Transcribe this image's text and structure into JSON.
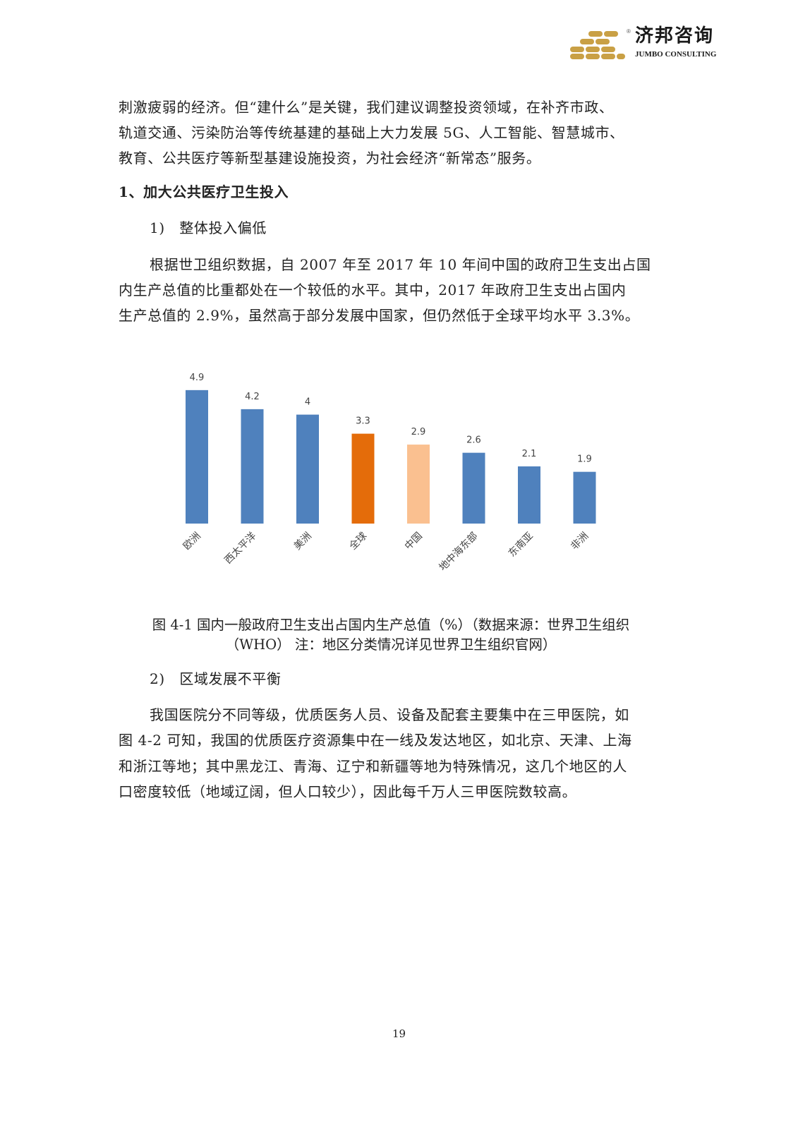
{
  "header": {
    "logo_cn": "济邦咨询",
    "logo_en": "JUMBO CONSULTING",
    "logo_mark": "®",
    "brand_color": "#c9a045"
  },
  "paragraph1": {
    "lines": [
      "刺激疲弱的经济。但“建什么”是关键，我们建议调整投资领域，在补齐市政、",
      "轨道交通、污染防治等传统基建的基础上大力发展 5G、人工智能、智慧城市、",
      "教育、公共医疗等新型基建设施投资，为社会经济“新常态”服务。"
    ]
  },
  "heading1": "1、加大公共医疗卫生投入",
  "subheading1": "1)　整体投入偏低",
  "paragraph2": {
    "lines": [
      "根据世卫组织数据，自 2007 年至 2017 年 10 年间中国的政府卫生支出占国",
      "内生产总值的比重都处在一个较低的水平。其中，2017 年政府卫生支出占国内",
      "生产总值的 2.9%，虽然高于部分发展中国家，但仍然低于全球平均水平 3.3%。"
    ]
  },
  "chart_data": {
    "type": "bar",
    "categories": [
      "欧洲",
      "西太平洋",
      "美洲",
      "全球",
      "中国",
      "地中海东部",
      "东南亚",
      "非洲"
    ],
    "values": [
      4.9,
      4.2,
      4,
      3.3,
      2.9,
      2.6,
      2.1,
      1.9
    ],
    "value_labels": [
      "4.9",
      "4.2",
      "4",
      "3.3",
      "2.9",
      "2.6",
      "2.1",
      "1.9"
    ],
    "colors": [
      "#4f81bd",
      "#4f81bd",
      "#4f81bd",
      "#e46c0a",
      "#fac090",
      "#4f81bd",
      "#4f81bd",
      "#4f81bd"
    ],
    "ylim": [
      0,
      5
    ],
    "grid": false,
    "legend": "none",
    "title": "",
    "xlabel": "",
    "ylabel": ""
  },
  "caption": {
    "lines": [
      "图 4-1  国内一般政府卫生支出占国内生产总值（%）（数据来源：世界卫生组织",
      "（WHO）  注：地区分类情况详见世界卫生组织官网）"
    ]
  },
  "subheading2": "2)　区域发展不平衡",
  "paragraph3": {
    "lines": [
      "我国医院分不同等级，优质医务人员、设备及配套主要集中在三甲医院，如",
      "图 4-2 可知，我国的优质医疗资源集中在一线及发达地区，如北京、天津、上海",
      "和浙江等地；其中黑龙江、青海、辽宁和新疆等地为特殊情况，这几个地区的人",
      "口密度较低（地域辽阔，但人口较少），因此每千万人三甲医院数较高。"
    ]
  },
  "page_number": "19"
}
